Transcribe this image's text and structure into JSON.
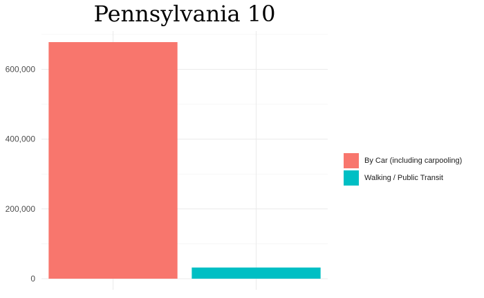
{
  "chart_data": {
    "type": "bar",
    "title": "Pennsylvania 10",
    "xlabel": "",
    "ylabel": "",
    "categories": [
      "By Car (including carpooling)",
      "Walking / Public Transit"
    ],
    "values": [
      678000,
      32000
    ],
    "colors": [
      "#F8766D",
      "#00BFC4"
    ],
    "ylim": [
      0,
      700000
    ],
    "yticks": [
      0,
      200000,
      400000,
      600000
    ],
    "ytick_labels": [
      "0",
      "200,000",
      "400,000",
      "600,000"
    ],
    "grid": true,
    "legend_position": "right"
  }
}
